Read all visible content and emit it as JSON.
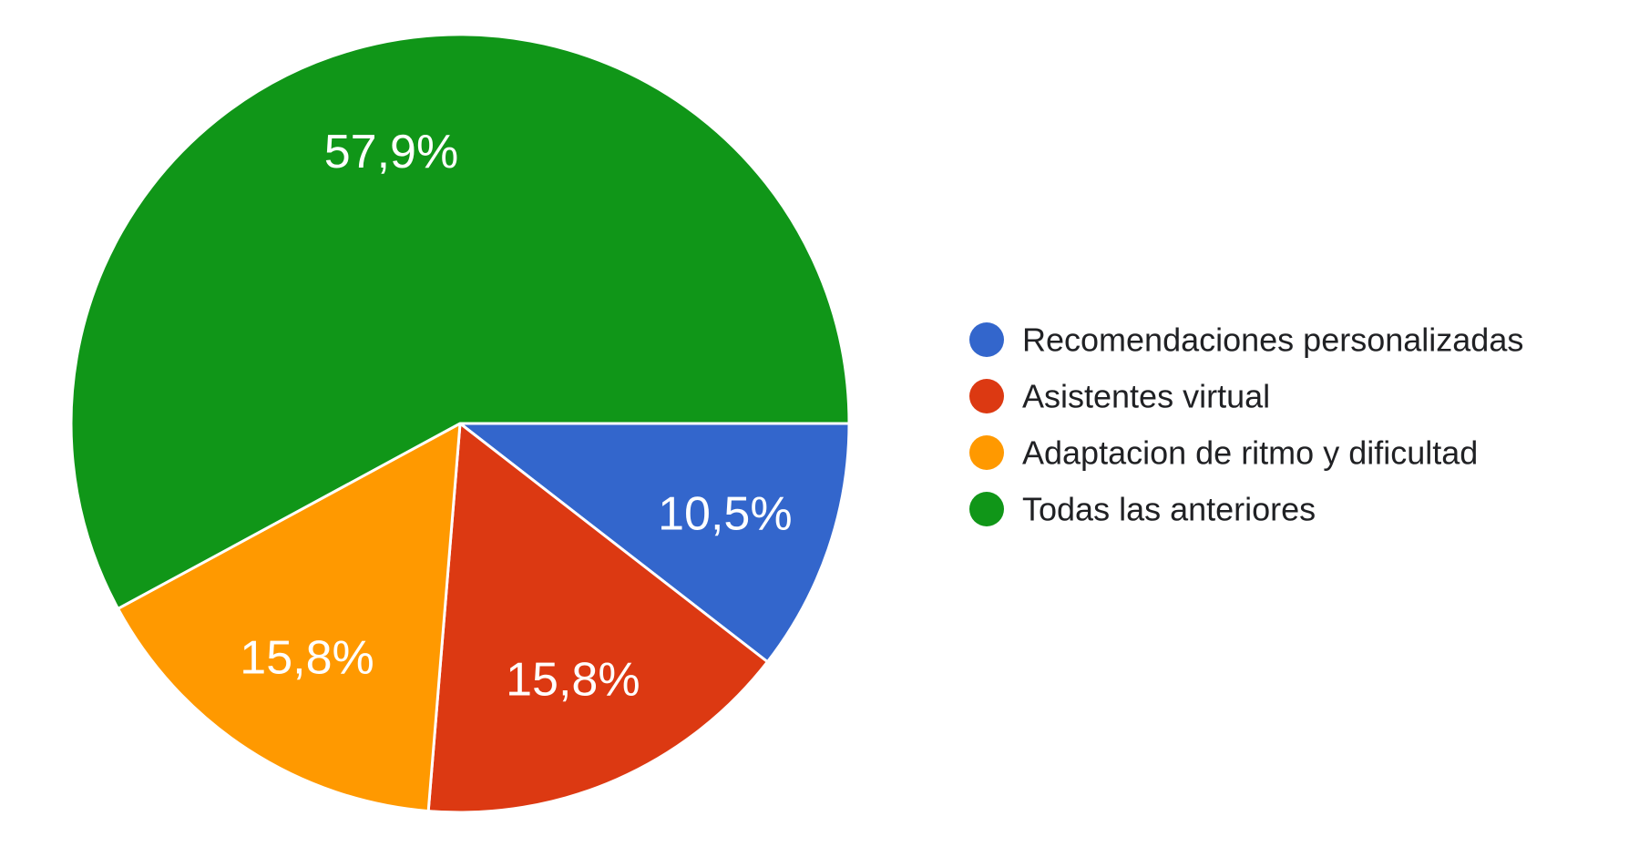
{
  "chart_data": {
    "type": "pie",
    "categories": [
      "Recomendaciones personalizadas",
      "Asistentes virtual",
      "Adaptacion de ritmo y dificultad",
      "Todas las anteriores"
    ],
    "values": [
      10.5,
      15.8,
      15.8,
      57.9
    ],
    "labels": [
      "10,5%",
      "15,8%",
      "15,8%",
      "57,9%"
    ],
    "colors": [
      "#3366cc",
      "#dc3912",
      "#ff9900",
      "#109618"
    ],
    "legend_position": "right",
    "start_direction": "3 o'clock, clockwise"
  }
}
